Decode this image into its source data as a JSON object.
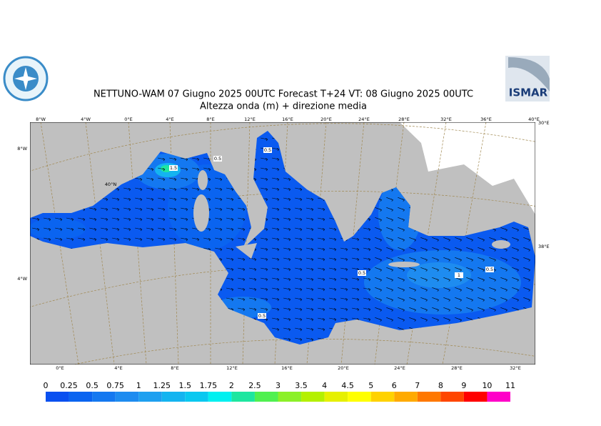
{
  "header": {
    "title": "NETTUNO-WAM  07   Giugno  2025 00UTC Forecast T+24 VT: 08   Giugno  2025 00UTC",
    "subtitle": "Altezza onda (m) + direzione media",
    "logo_text": "ISMAR"
  },
  "map": {
    "top_labels": [
      "8°W",
      "4°W",
      "0°E",
      "4°E",
      "8°E",
      "12°E",
      "16°E",
      "20°E",
      "24°E",
      "28°E",
      "32°E",
      "36°E",
      "40°E"
    ],
    "bottom_labels": [
      "0°E",
      "4°E",
      "8°E",
      "12°E",
      "16°E",
      "20°E",
      "24°E",
      "28°E",
      "32°E"
    ],
    "left_labels": [
      "8°W",
      "4°W"
    ],
    "inner_labels": [
      "40°N"
    ],
    "right_labels": [
      "30°E",
      "38°E"
    ],
    "contour_labels": [
      "0.5",
      "0.5",
      "1.5",
      "0.5",
      "0.5",
      "1",
      "0.5"
    ]
  },
  "legend": {
    "labels": [
      0,
      0.25,
      0.5,
      0.75,
      1,
      1.25,
      1.5,
      1.75,
      2,
      2.5,
      3,
      3.5,
      4,
      4.5,
      5,
      6,
      7,
      8,
      9,
      10,
      11
    ],
    "colors": [
      "#0a50f0",
      "#0a64f0",
      "#1478f0",
      "#1e8cf0",
      "#1ea0f0",
      "#14b4f0",
      "#0ac8f0",
      "#00f0f0",
      "#1ee6a0",
      "#50f050",
      "#8cf028",
      "#b4f000",
      "#e6f000",
      "#ffff00",
      "#ffd200",
      "#ffaa00",
      "#ff7800",
      "#ff4600",
      "#ff0000",
      "#ff00c8"
    ]
  }
}
